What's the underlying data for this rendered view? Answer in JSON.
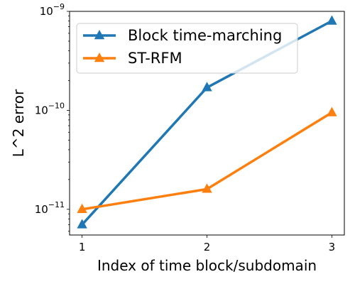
{
  "chart_data": {
    "type": "line",
    "title": "",
    "xlabel": "Index of time block/subdomain",
    "ylabel": "L^2 error",
    "x": [
      1,
      2,
      3
    ],
    "xticks": [
      "1",
      "2",
      "3"
    ],
    "yscale": "log",
    "ylim": [
      5.5e-12,
      1e-09
    ],
    "yticks": [
      {
        "value": 1e-11,
        "base": "10",
        "exp": "−11"
      },
      {
        "value": 1e-10,
        "base": "10",
        "exp": "−10"
      },
      {
        "value": 1e-09,
        "base": "10",
        "exp": "−9"
      }
    ],
    "legend_position": "top-left",
    "grid": false,
    "series": [
      {
        "name": "Block time-marching",
        "color": "#1f77b4",
        "values": [
          7e-12,
          1.7e-10,
          8e-10
        ]
      },
      {
        "name": "ST-RFM",
        "color": "#ff7f0e",
        "values": [
          1e-11,
          1.6e-11,
          9.5e-11
        ]
      }
    ]
  }
}
